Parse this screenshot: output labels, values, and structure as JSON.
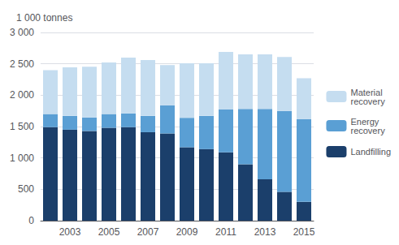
{
  "chart_data": {
    "type": "bar",
    "stacked": true,
    "grid": true,
    "legend": "right",
    "ylabel": "1 000 tonnes",
    "categories": [
      null,
      "2003",
      null,
      "2005",
      null,
      "2007",
      null,
      "2009",
      null,
      "2011",
      null,
      "2013",
      null,
      "2015"
    ],
    "series": [
      {
        "name": "Landfilling",
        "color": "#1b3f6b",
        "values": [
          1490,
          1450,
          1430,
          1480,
          1490,
          1410,
          1390,
          1170,
          1140,
          1090,
          900,
          660,
          460,
          300
        ]
      },
      {
        "name": "Energy\nrecovery",
        "color": "#5a9fd4",
        "values": [
          210,
          220,
          215,
          220,
          220,
          260,
          450,
          470,
          530,
          680,
          880,
          1120,
          1290,
          1320
        ]
      },
      {
        "name": "Material\nrecovery",
        "color": "#c5ddf0",
        "values": [
          700,
          775,
          810,
          820,
          890,
          890,
          640,
          870,
          840,
          920,
          870,
          870,
          860,
          650
        ]
      }
    ],
    "ylim": [
      0,
      3000
    ],
    "yticks": [
      0,
      500,
      {
        "value": 1000,
        "label": "1 000"
      },
      {
        "value": 1500,
        "label": "1 500"
      },
      {
        "value": 2000,
        "label": "2 000"
      },
      {
        "value": 2500,
        "label": "2 500"
      },
      {
        "value": 3000,
        "label": "3 000"
      }
    ]
  }
}
